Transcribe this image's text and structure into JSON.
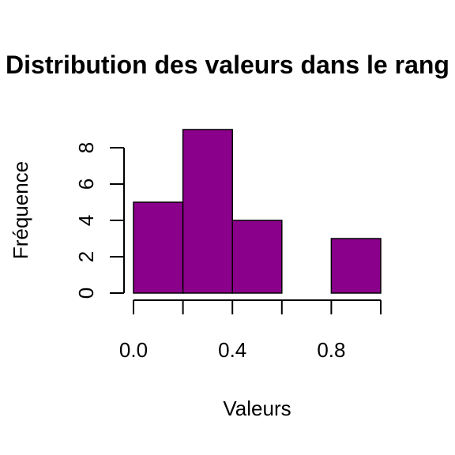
{
  "chart_data": {
    "type": "bar",
    "title": "Distribution des valeurs dans le rang",
    "xlabel": "Valeurs",
    "ylabel": "Fréquence",
    "bins": [
      {
        "from": 0.0,
        "to": 0.2,
        "count": 5
      },
      {
        "from": 0.2,
        "to": 0.4,
        "count": 9
      },
      {
        "from": 0.4,
        "to": 0.6,
        "count": 4
      },
      {
        "from": 0.6,
        "to": 0.8,
        "count": 0
      },
      {
        "from": 0.8,
        "to": 1.0,
        "count": 3
      }
    ],
    "xlim": [
      0,
      1
    ],
    "ylim": [
      0,
      9
    ],
    "x_ticks": [
      "0.0",
      "0.4",
      "0.8"
    ],
    "x_tick_values": [
      0.0,
      0.4,
      0.8
    ],
    "x_minor_tick_values": [
      0.0,
      0.2,
      0.4,
      0.6,
      0.8,
      1.0
    ],
    "y_ticks": [
      "0",
      "2",
      "4",
      "6",
      "8"
    ],
    "y_tick_values": [
      0,
      2,
      4,
      6,
      8
    ],
    "bar_color": "#8B008B",
    "grid": false,
    "legend": "none"
  }
}
